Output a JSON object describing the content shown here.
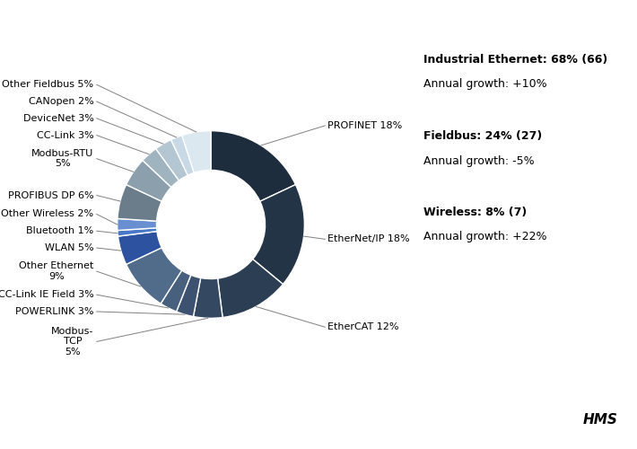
{
  "chart_data": {
    "type": "donut",
    "categories": [
      "PROFINET 18%",
      "EtherNet/IP 18%",
      "EtherCAT 12%",
      "Modbus-\nTCP\n5%",
      "POWERLINK 3%",
      "CC-Link IE Field 3%",
      "Other Ethernet\n9%",
      "WLAN 5%",
      "Bluetooth 1%",
      "Other Wireless 2%",
      "PROFIBUS DP 6%",
      "Modbus-RTU\n5%",
      "CC-Link 3%",
      "DeviceNet 3%",
      "CANopen 2%",
      "Other Fieldbus 5%"
    ],
    "values": [
      18,
      18,
      12,
      5,
      3,
      3,
      9,
      5,
      1,
      2,
      6,
      5,
      3,
      3,
      2,
      5
    ],
    "colors": [
      "#1d2d3e",
      "#243447",
      "#2c3e54",
      "#354861",
      "#3d5270",
      "#46607e",
      "#506c8a",
      "#2d52a0",
      "#4a78c8",
      "#6a8fd0",
      "#6b7d8a",
      "#8c9fad",
      "#a0b4c0",
      "#b4c6d2",
      "#c8d8e4",
      "#dce8f0"
    ],
    "annotations": [
      "Industrial Ethernet: 68% (66)",
      "Annual growth: +10%",
      "Fieldbus: 24% (27)",
      "Annual growth: -5%",
      "Wireless: 8% (7)",
      "Annual growth: +22%",
      "HMS"
    ]
  }
}
